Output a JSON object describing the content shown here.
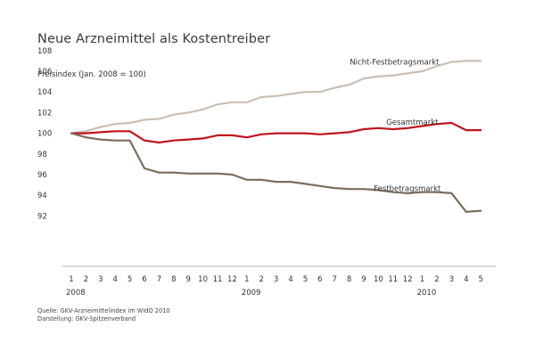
{
  "title": "Neue Arzneimittel als Kostentreiber",
  "source_notes": [
    "Quelle: GKV-Arzneimittelindex im WIdO 2010",
    "Darstellung: GKV-Spitzenverband"
  ],
  "chart_data": {
    "type": "line",
    "ylabel": "Preisindex (Jan. 2008 = 100)",
    "ylim": [
      91,
      109
    ],
    "yticks": [
      92,
      94,
      96,
      98,
      100,
      102,
      104,
      106,
      108
    ],
    "categories": [
      "1",
      "2",
      "3",
      "4",
      "5",
      "6",
      "7",
      "8",
      "9",
      "10",
      "11",
      "12",
      "1",
      "2",
      "3",
      "4",
      "5",
      "6",
      "7",
      "8",
      "9",
      "10",
      "11",
      "12",
      "1",
      "2",
      "3",
      "4",
      "5"
    ],
    "year_labels": [
      {
        "label": "2008",
        "at_index": 0
      },
      {
        "label": "2009",
        "at_index": 12
      },
      {
        "label": "2010",
        "at_index": 24
      }
    ],
    "grid": false,
    "series": [
      {
        "name": "Nicht-Festbetragsmarkt",
        "color": "#c9bfb4",
        "values": [
          100.0,
          100.2,
          100.6,
          100.9,
          101.0,
          101.3,
          101.4,
          101.8,
          102.0,
          102.3,
          102.8,
          103.0,
          103.0,
          103.5,
          103.6,
          103.8,
          104.0,
          104.0,
          104.4,
          104.7,
          105.3,
          105.5,
          105.6,
          105.8,
          106.0,
          106.5,
          106.9,
          107.0,
          107.0
        ]
      },
      {
        "name": "Gesamtmarkt",
        "color": "#c0141c",
        "values": [
          100.0,
          100.0,
          100.1,
          100.2,
          100.2,
          99.3,
          99.1,
          99.3,
          99.4,
          99.5,
          99.8,
          99.8,
          99.6,
          99.9,
          100.0,
          100.0,
          100.0,
          99.9,
          100.0,
          100.1,
          100.4,
          100.5,
          100.4,
          100.5,
          100.7,
          100.9,
          101.0,
          100.3,
          100.3
        ]
      },
      {
        "name": "Festbetragsmarkt",
        "color": "#7b6d5d",
        "values": [
          100.0,
          99.6,
          99.4,
          99.3,
          99.3,
          96.6,
          96.2,
          96.2,
          96.1,
          96.1,
          96.1,
          96.0,
          95.5,
          95.5,
          95.3,
          95.3,
          95.1,
          94.9,
          94.7,
          94.6,
          94.6,
          94.5,
          94.3,
          94.2,
          94.3,
          94.3,
          94.2,
          92.4,
          92.5
        ]
      }
    ]
  }
}
